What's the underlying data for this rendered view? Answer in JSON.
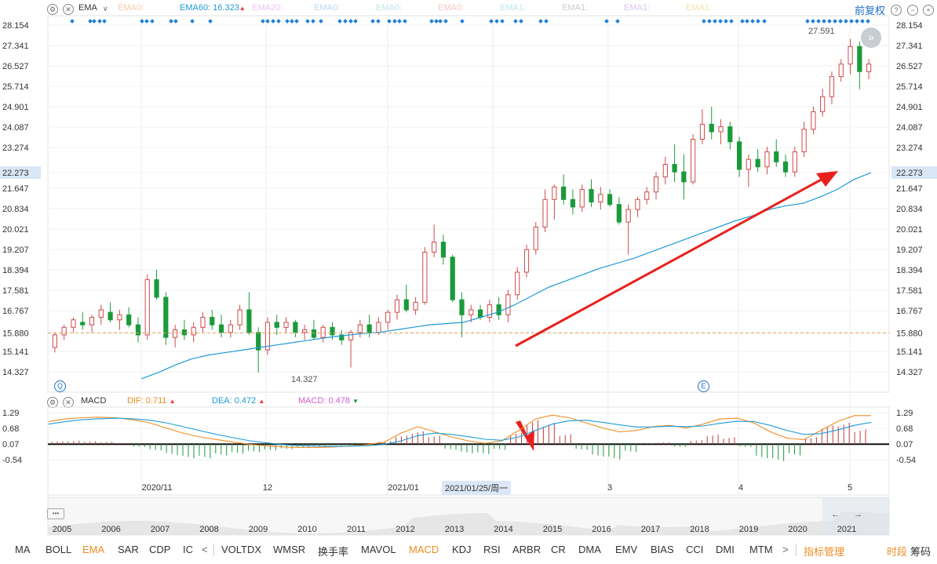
{
  "main_header": {
    "indicator": "EMA",
    "chevron": "∨",
    "ema_series": [
      {
        "label": "EMA0:",
        "color": "#f5c9a8"
      },
      {
        "label": "EMA60: 16.323",
        "color": "#1e9bd7",
        "arrow": "▲"
      },
      {
        "label": "EMA20:",
        "color": "#e9c6ef"
      },
      {
        "label": "EMA0:",
        "color": "#b9d8f0"
      },
      {
        "label": "EMA0:",
        "color": "#bfe3e6"
      },
      {
        "label": "EMA0:",
        "color": "#f6c5c5"
      },
      {
        "label": "EMA1:",
        "color": "#bfe7ec"
      },
      {
        "label": "EMA1:",
        "color": "#cccccc"
      },
      {
        "label": "EMA1:",
        "color": "#d8c6ef"
      },
      {
        "label": "EMA1:",
        "color": "#f0e3b5"
      }
    ],
    "right_label": "前复权"
  },
  "macd_header": {
    "indicator": "MACD",
    "dif": "DIF: 0.711",
    "dea": "DEA: 0.472",
    "macd": "MACD: 0.478",
    "dif_color": "#f08c22",
    "dea_color": "#1e9bd7",
    "macd_color": "#d45bd4"
  },
  "price_axis_ticks": [
    "28.154",
    "27.341",
    "26.527",
    "25.714",
    "24.901",
    "24.087",
    "23.274",
    "22.273",
    "21.647",
    "20.834",
    "20.021",
    "19.207",
    "18.394",
    "17.581",
    "16.767",
    "15.880",
    "15.141",
    "14.327"
  ],
  "macd_axis_ticks": [
    "1.29",
    "0.68",
    "0.07",
    "-0.54"
  ],
  "annotations": {
    "high": "27.591",
    "low": "14.327",
    "current_marker": "22.273",
    "ref_line": "15.880",
    "crosshair_date": "2021/01/25/周一",
    "marker_q": "Q",
    "marker_e": "E",
    "nav_ellipsis": "•••",
    "nav_left": "←",
    "nav_right": "→"
  },
  "x_axis_labels": [
    "2020/11",
    "12",
    "2021/01",
    "3",
    "4",
    "5"
  ],
  "overview_years": [
    "2005",
    "2006",
    "2007",
    "2008",
    "2009",
    "2010",
    "2011",
    "2012",
    "2013",
    "2014",
    "2015",
    "2016",
    "2017",
    "2018",
    "2019",
    "2020",
    "2021"
  ],
  "indicator_tabs": [
    "MA",
    "BOLL",
    "EMA",
    "SAR",
    "CDP",
    "IC",
    "VOLTDX",
    "WMSR",
    "换手率",
    "MAVOL",
    "MACD",
    "KDJ",
    "RSI",
    "ARBR",
    "CR",
    "DMA",
    "EMV",
    "BIAS",
    "CCI",
    "DMI",
    "MTM"
  ],
  "active_tabs": [
    "EMA",
    "MACD"
  ],
  "tools": {
    "manage": "指标管理",
    "timeshare": "时段",
    "chips": "筹码"
  },
  "chart_data": {
    "type": "candlestick",
    "price_ylim": [
      14.0,
      28.3
    ],
    "ema60": [
      14.05,
      14.3,
      14.6,
      14.85,
      15.0,
      15.1,
      15.2,
      15.3,
      15.4,
      15.5,
      15.6,
      15.7,
      15.78,
      15.85,
      15.9,
      16.0,
      16.1,
      16.2,
      16.25,
      16.3,
      16.5,
      16.7,
      17.0,
      17.35,
      17.7,
      17.95,
      18.2,
      18.45,
      18.65,
      18.85,
      19.1,
      19.35,
      19.6,
      19.85,
      20.1,
      20.35,
      20.55,
      20.8,
      20.95,
      21.05,
      21.3,
      21.6,
      22.0,
      22.27
    ],
    "ohlc": [
      [
        15.3,
        15.9,
        15.1,
        15.8
      ],
      [
        15.8,
        16.2,
        15.6,
        16.1
      ],
      [
        16.1,
        16.5,
        15.9,
        16.4
      ],
      [
        16.3,
        16.7,
        16.0,
        16.2
      ],
      [
        16.2,
        16.6,
        15.9,
        16.5
      ],
      [
        16.5,
        17.0,
        16.2,
        16.8
      ],
      [
        16.7,
        17.1,
        16.3,
        16.4
      ],
      [
        16.4,
        16.8,
        16.0,
        16.6
      ],
      [
        16.6,
        16.9,
        16.1,
        16.2
      ],
      [
        16.2,
        16.5,
        15.5,
        15.8
      ],
      [
        15.8,
        18.2,
        15.6,
        18.0
      ],
      [
        18.0,
        18.4,
        17.2,
        17.3
      ],
      [
        17.3,
        17.5,
        15.4,
        15.7
      ],
      [
        15.7,
        16.2,
        15.3,
        16.0
      ],
      [
        16.0,
        16.4,
        15.6,
        15.8
      ],
      [
        15.8,
        16.3,
        15.5,
        16.1
      ],
      [
        16.1,
        16.7,
        15.9,
        16.5
      ],
      [
        16.5,
        16.8,
        16.0,
        16.2
      ],
      [
        16.2,
        16.6,
        15.7,
        15.9
      ],
      [
        15.9,
        16.4,
        15.7,
        16.2
      ],
      [
        16.2,
        17.0,
        16.0,
        16.8
      ],
      [
        16.8,
        17.5,
        15.8,
        15.9
      ],
      [
        15.9,
        16.1,
        14.3,
        15.2
      ],
      [
        15.2,
        16.5,
        15.0,
        16.3
      ],
      [
        16.3,
        16.6,
        15.8,
        16.1
      ],
      [
        16.1,
        16.5,
        15.9,
        16.3
      ],
      [
        16.3,
        16.4,
        15.7,
        15.9
      ],
      [
        15.9,
        16.2,
        15.6,
        16.0
      ],
      [
        16.0,
        16.4,
        15.6,
        15.7
      ],
      [
        15.7,
        16.2,
        15.5,
        16.1
      ],
      [
        16.1,
        16.3,
        15.6,
        15.8
      ],
      [
        15.8,
        16.0,
        15.4,
        15.6
      ],
      [
        15.6,
        16.0,
        14.5,
        15.9
      ],
      [
        15.9,
        16.4,
        15.7,
        16.2
      ],
      [
        16.2,
        16.6,
        15.7,
        15.9
      ],
      [
        15.9,
        16.5,
        15.8,
        16.3
      ],
      [
        16.3,
        16.8,
        16.0,
        16.7
      ],
      [
        16.7,
        17.4,
        16.4,
        17.2
      ],
      [
        17.2,
        17.8,
        16.7,
        16.8
      ],
      [
        16.8,
        17.3,
        16.6,
        17.1
      ],
      [
        17.1,
        19.3,
        17.0,
        19.1
      ],
      [
        19.1,
        20.2,
        18.9,
        19.5
      ],
      [
        19.5,
        19.8,
        18.6,
        18.9
      ],
      [
        18.9,
        19.0,
        17.1,
        17.2
      ],
      [
        17.2,
        17.5,
        15.7,
        16.6
      ],
      [
        16.6,
        17.0,
        16.3,
        16.8
      ],
      [
        16.8,
        17.0,
        16.4,
        16.5
      ],
      [
        16.5,
        17.2,
        16.3,
        17.0
      ],
      [
        17.0,
        17.3,
        16.4,
        16.6
      ],
      [
        16.6,
        17.6,
        16.3,
        17.4
      ],
      [
        17.4,
        18.5,
        17.2,
        18.3
      ],
      [
        18.3,
        19.4,
        18.1,
        19.2
      ],
      [
        19.2,
        20.3,
        19.0,
        20.1
      ],
      [
        20.1,
        21.6,
        19.9,
        21.2
      ],
      [
        21.2,
        21.8,
        20.4,
        21.7
      ],
      [
        21.7,
        22.2,
        21.0,
        21.2
      ],
      [
        21.2,
        21.6,
        20.6,
        20.9
      ],
      [
        20.9,
        21.8,
        20.7,
        21.6
      ],
      [
        21.6,
        22.0,
        20.9,
        21.1
      ],
      [
        21.1,
        21.7,
        20.8,
        21.4
      ],
      [
        21.4,
        21.6,
        20.9,
        21.0
      ],
      [
        21.0,
        21.3,
        20.2,
        20.3
      ],
      [
        20.3,
        21.0,
        19.0,
        20.8
      ],
      [
        20.8,
        21.3,
        20.5,
        21.2
      ],
      [
        21.2,
        21.7,
        21.0,
        21.5
      ],
      [
        21.5,
        22.3,
        21.2,
        22.1
      ],
      [
        22.1,
        22.9,
        21.8,
        22.6
      ],
      [
        22.6,
        23.4,
        21.9,
        22.3
      ],
      [
        22.3,
        23.0,
        21.2,
        21.9
      ],
      [
        21.9,
        23.8,
        21.8,
        23.6
      ],
      [
        23.6,
        24.8,
        23.4,
        24.2
      ],
      [
        24.2,
        24.9,
        23.6,
        23.9
      ],
      [
        23.9,
        24.4,
        23.4,
        24.1
      ],
      [
        24.1,
        24.3,
        23.2,
        23.5
      ],
      [
        23.5,
        23.7,
        22.1,
        22.4
      ],
      [
        22.4,
        23.0,
        21.7,
        22.8
      ],
      [
        22.8,
        23.2,
        22.3,
        22.5
      ],
      [
        22.5,
        23.3,
        22.2,
        23.1
      ],
      [
        23.1,
        23.6,
        22.5,
        22.7
      ],
      [
        22.7,
        23.0,
        22.1,
        22.3
      ],
      [
        22.3,
        23.3,
        22.1,
        23.1
      ],
      [
        23.1,
        24.3,
        22.9,
        24.0
      ],
      [
        24.0,
        24.9,
        23.8,
        24.7
      ],
      [
        24.7,
        25.6,
        24.5,
        25.3
      ],
      [
        25.3,
        26.3,
        25.0,
        26.1
      ],
      [
        26.1,
        26.8,
        25.9,
        26.6
      ],
      [
        26.6,
        27.6,
        26.2,
        27.3
      ],
      [
        27.3,
        27.5,
        25.6,
        26.3
      ],
      [
        26.3,
        26.8,
        26.0,
        26.6
      ]
    ],
    "macd_ylim": [
      -0.9,
      1.45
    ],
    "dif": [
      0.95,
      1.05,
      1.1,
      1.12,
      1.1,
      1.02,
      0.9,
      0.7,
      0.5,
      0.35,
      0.25,
      0.15,
      0.06,
      0.0,
      -0.04,
      -0.06,
      -0.06,
      -0.04,
      0.0,
      0.05,
      0.15,
      0.5,
      0.75,
      0.55,
      0.35,
      0.2,
      0.1,
      0.2,
      0.6,
      1.05,
      1.2,
      1.1,
      0.9,
      0.7,
      0.55,
      0.6,
      0.75,
      0.8,
      0.7,
      0.85,
      1.05,
      1.08,
      0.9,
      0.55,
      0.3,
      0.25,
      0.6,
      0.95,
      1.18,
      1.18
    ],
    "dea": [
      0.85,
      0.95,
      1.02,
      1.06,
      1.08,
      1.06,
      1.0,
      0.9,
      0.75,
      0.6,
      0.45,
      0.32,
      0.2,
      0.12,
      0.05,
      0.01,
      -0.01,
      -0.02,
      -0.01,
      0.01,
      0.06,
      0.2,
      0.4,
      0.5,
      0.45,
      0.36,
      0.26,
      0.22,
      0.35,
      0.6,
      0.85,
      0.98,
      1.0,
      0.92,
      0.82,
      0.74,
      0.74,
      0.77,
      0.75,
      0.78,
      0.88,
      0.96,
      0.95,
      0.8,
      0.6,
      0.45,
      0.48,
      0.62,
      0.8,
      0.92
    ],
    "histogram": [
      0.1,
      0.12,
      0.1,
      0.08,
      0.04,
      -0.1,
      -0.22,
      -0.38,
      -0.5,
      -0.5,
      -0.4,
      -0.34,
      -0.28,
      -0.22,
      -0.18,
      -0.14,
      -0.1,
      -0.06,
      -0.04,
      0.02,
      0.1,
      0.3,
      0.45,
      0.3,
      -0.2,
      -0.32,
      -0.35,
      -0.2,
      0.4,
      0.85,
      0.75,
      0.35,
      -0.2,
      -0.44,
      -0.54,
      -0.28,
      0.02,
      0.06,
      -0.1,
      0.14,
      0.34,
      0.24,
      -0.1,
      -0.5,
      -0.6,
      -0.4,
      0.24,
      0.66,
      0.76,
      0.52
    ]
  }
}
